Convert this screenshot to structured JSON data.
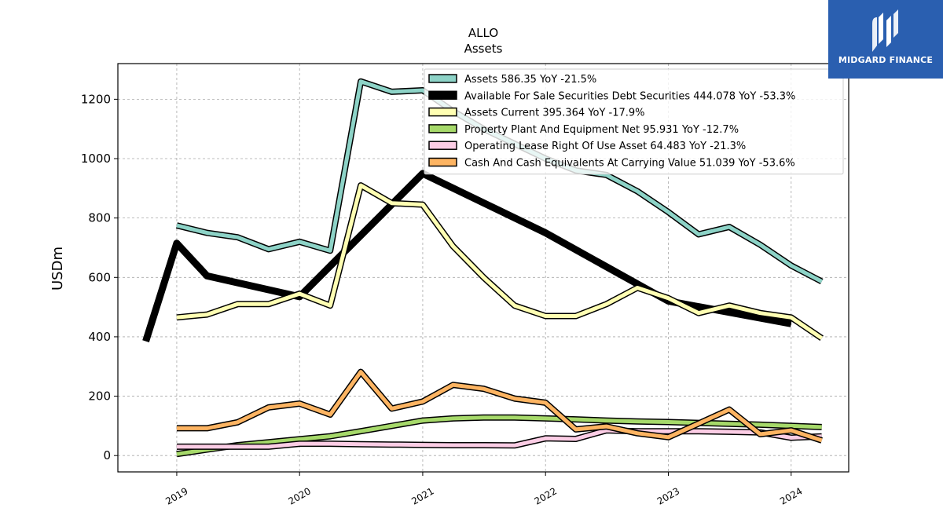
{
  "brand": {
    "name": "MIDGARD FINANCE",
    "color": "#2a5fb0"
  },
  "chart_data": {
    "type": "line",
    "title": "ALLO",
    "subtitle": "Assets",
    "ylabel": "USDm",
    "xlabel": "",
    "xlim": [
      "2018-07-10",
      "2024-06-20"
    ],
    "ylim": [
      -55,
      1320
    ],
    "yticks": [
      0,
      200,
      400,
      600,
      800,
      1000,
      1200
    ],
    "xticks": [
      "2019",
      "2020",
      "2021",
      "2022",
      "2023",
      "2024"
    ],
    "grid": true,
    "legend_position": "top-right",
    "series": [
      {
        "name": "Assets",
        "legend_label": "Assets  586.35 YoY -21.5%",
        "color": "#8dd3c7",
        "width": 5,
        "outlined": true,
        "x": [
          "2019-01-01",
          "2019-04-01",
          "2019-07-01",
          "2019-10-01",
          "2020-01-01",
          "2020-04-01",
          "2020-07-01",
          "2020-10-01",
          "2021-01-01",
          "2021-04-01",
          "2021-07-01",
          "2021-10-01",
          "2022-01-01",
          "2022-04-01",
          "2022-07-01",
          "2022-10-01",
          "2023-01-01",
          "2023-04-01",
          "2023-07-01",
          "2023-10-01",
          "2024-01-01",
          "2024-04-01"
        ],
        "values": [
          775,
          750,
          735,
          695,
          720,
          690,
          1260,
          1225,
          1230,
          1160,
          1100,
          1050,
          1000,
          960,
          945,
          890,
          820,
          745,
          770,
          710,
          640,
          586.35
        ]
      },
      {
        "name": "Available For Sale Securities Debt Securities",
        "legend_label": "Available For Sale Securities Debt Securities  444.078 YoY -53.3%",
        "color": "#000000",
        "width": 9,
        "outlined": false,
        "x": [
          "2018-10-01",
          "2019-01-01",
          "2019-04-01",
          "2020-01-01",
          "2021-01-01",
          "2022-01-01",
          "2023-01-01",
          "2024-01-01"
        ],
        "values": [
          385,
          715,
          605,
          535,
          950,
          750,
          520,
          444.078
        ]
      },
      {
        "name": "Assets Current",
        "legend_label": "Assets Current  395.364 YoY -17.9%",
        "color": "#ffffb3",
        "width": 5,
        "outlined": true,
        "x": [
          "2019-01-01",
          "2019-04-01",
          "2019-07-01",
          "2019-10-01",
          "2020-01-01",
          "2020-04-01",
          "2020-07-01",
          "2020-10-01",
          "2021-01-01",
          "2021-04-01",
          "2021-07-01",
          "2021-10-01",
          "2022-01-01",
          "2022-04-01",
          "2022-07-01",
          "2022-10-01",
          "2023-01-01",
          "2023-04-01",
          "2023-07-01",
          "2023-10-01",
          "2024-01-01",
          "2024-04-01"
        ],
        "values": [
          465,
          475,
          510,
          510,
          545,
          505,
          910,
          850,
          845,
          705,
          600,
          505,
          470,
          470,
          510,
          565,
          530,
          480,
          505,
          480,
          465,
          395.364
        ]
      },
      {
        "name": "Property Plant And Equipment Net",
        "legend_label": "Property Plant And Equipment Net  95.931 YoY -12.7%",
        "color": "#a6d96a",
        "width": 5,
        "outlined": true,
        "x": [
          "2019-01-01",
          "2019-04-01",
          "2019-07-01",
          "2019-10-01",
          "2020-01-01",
          "2020-04-01",
          "2020-07-01",
          "2020-10-01",
          "2021-01-01",
          "2021-04-01",
          "2021-07-01",
          "2021-10-01",
          "2022-01-01",
          "2022-04-01",
          "2022-07-01",
          "2022-10-01",
          "2023-01-01",
          "2023-04-01",
          "2023-07-01",
          "2023-10-01",
          "2024-01-01",
          "2024-04-01"
        ],
        "values": [
          5,
          20,
          35,
          45,
          55,
          65,
          82,
          100,
          118,
          125,
          128,
          128,
          125,
          122,
          118,
          115,
          113,
          110,
          107,
          104,
          100,
          95.931
        ]
      },
      {
        "name": "Operating Lease Right Of Use Asset",
        "legend_label": "Operating Lease Right Of Use Asset  64.483 YoY -21.3%",
        "color": "#fccde5",
        "width": 5,
        "outlined": true,
        "x": [
          "2019-01-01",
          "2019-04-01",
          "2019-07-01",
          "2019-10-01",
          "2020-01-01",
          "2020-04-01",
          "2020-07-01",
          "2020-10-01",
          "2021-01-01",
          "2021-04-01",
          "2021-07-01",
          "2021-10-01",
          "2022-01-01",
          "2022-04-01",
          "2022-07-01",
          "2022-10-01",
          "2023-01-01",
          "2023-04-01",
          "2023-07-01",
          "2023-10-01",
          "2024-01-01",
          "2024-04-01"
        ],
        "values": [
          30,
          30,
          30,
          30,
          40,
          40,
          38,
          37,
          36,
          35,
          35,
          34,
          58,
          56,
          85,
          82,
          82,
          82,
          80,
          78,
          60,
          64.483
        ]
      },
      {
        "name": "Cash And Cash Equivalents At Carrying Value",
        "legend_label": "Cash And Cash Equivalents At Carrying Value  51.039 YoY -53.6%",
        "color": "#fdb462",
        "width": 5,
        "outlined": true,
        "x": [
          "2019-01-01",
          "2019-04-01",
          "2019-07-01",
          "2019-10-01",
          "2020-01-01",
          "2020-04-01",
          "2020-07-01",
          "2020-10-01",
          "2021-01-01",
          "2021-04-01",
          "2021-07-01",
          "2021-10-01",
          "2022-01-01",
          "2022-04-01",
          "2022-07-01",
          "2022-10-01",
          "2023-01-01",
          "2023-04-01",
          "2023-07-01",
          "2023-10-01",
          "2024-01-01",
          "2024-04-01"
        ],
        "values": [
          92,
          92,
          112,
          162,
          175,
          138,
          282,
          158,
          182,
          238,
          225,
          192,
          178,
          88,
          98,
          75,
          62,
          108,
          155,
          72,
          85,
          51.039
        ]
      }
    ]
  }
}
